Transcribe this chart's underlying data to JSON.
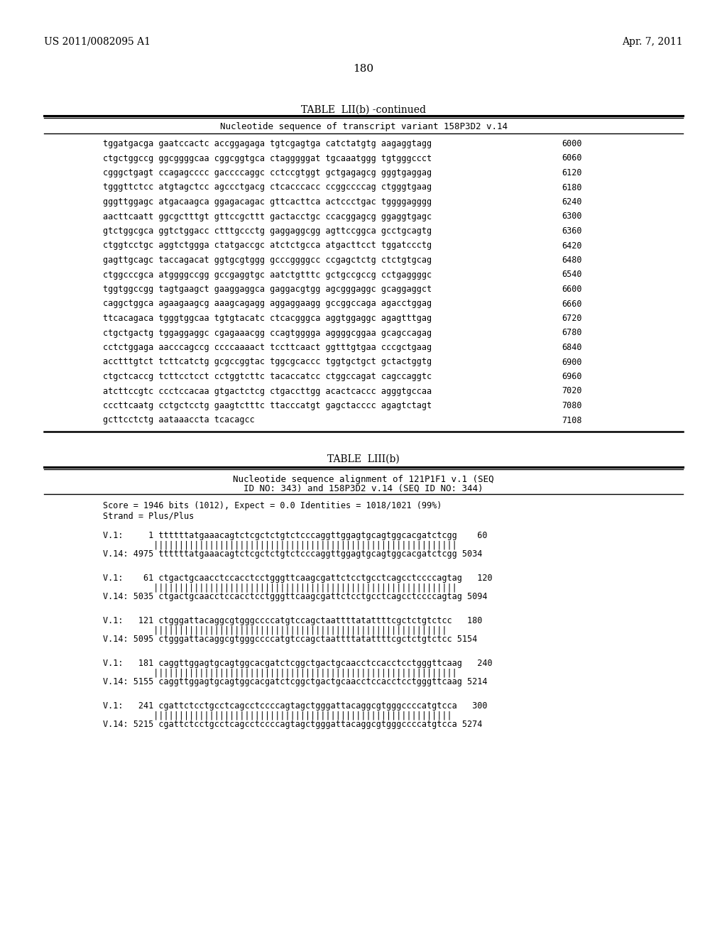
{
  "header_left": "US 2011/0082095 A1",
  "header_right": "Apr. 7, 2011",
  "page_number": "180",
  "table1_title": "TABLE  LII(b) -continued",
  "table1_header": "Nucleotide sequence of transcript variant 158P3D2 v.14",
  "table1_rows": [
    [
      "tggatgacga gaatccactc accggagaga tgtcgagtga catctatgtg aagaggtagg",
      "6000"
    ],
    [
      "ctgctggccg ggcggggcaa cggcggtgca ctagggggat tgcaaatggg tgtgggccct",
      "6060"
    ],
    [
      "cgggctgagt ccagagcccc gaccccaggc cctccgtggt gctgagagcg gggtgaggag",
      "6120"
    ],
    [
      "tgggttctcc atgtagctcc agccctgacg ctcacccacc ccggccccag ctgggtgaag",
      "6180"
    ],
    [
      "gggttggagc atgacaagca ggagacagac gttcacttca actccctgac tggggagggg",
      "6240"
    ],
    [
      "aacttcaatt ggcgctttgt gttccgcttt gactacctgc ccacggagcg ggaggtgagc",
      "6300"
    ],
    [
      "gtctggcgca ggtctggacc ctttgccctg gaggaggcgg agttccggca gcctgcagtg",
      "6360"
    ],
    [
      "ctggtcctgc aggtctggga ctatgaccgc atctctgcca atgacttcct tggatccctg",
      "6420"
    ],
    [
      "gagttgcagc taccagacat ggtgcgtggg gcccggggcc ccgagctctg ctctgtgcag",
      "6480"
    ],
    [
      "ctggcccgca atggggccgg gccgaggtgc aatctgtttc gctgccgccg cctgaggggc",
      "6540"
    ],
    [
      "tggtggccgg tagtgaagct gaaggaggca gaggacgtgg agcgggaggc gcaggaggct",
      "6600"
    ],
    [
      "caggctggca agaagaagcg aaagcagagg aggaggaagg gccggccaga agacctggag",
      "6660"
    ],
    [
      "ttcacagaca tgggtggcaa tgtgtacatc ctcacgggca aggtggaggc agagtttgag",
      "6720"
    ],
    [
      "ctgctgactg tggaggaggc cgagaaacgg ccagtgggga aggggcggaa gcagccagag",
      "6780"
    ],
    [
      "cctctggaga aacccagccg ccccaaaact tccttcaact ggtttgtgaa cccgctgaag",
      "6840"
    ],
    [
      "acctttgtct tcttcatctg gcgccggtac tggcgcaccc tggtgctgct gctactggtg",
      "6900"
    ],
    [
      "ctgctcaccg tcttcctcct cctggtcttc tacaccatcc ctggccagat cagccaggtc",
      "6960"
    ],
    [
      "atcttccgtc ccctccacaa gtgactctcg ctgaccttgg acactcaccc agggtgccaa",
      "7020"
    ],
    [
      "cccttcaatg cctgctcctg gaagtctttc ttacccatgt gagctacccc agagtctagt",
      "7080"
    ],
    [
      "gcttcctctg aataaaccta tcacagcc",
      "7108"
    ]
  ],
  "table2_title": "TABLE  LIII(b)",
  "table2_header_line1": "Nucleotide sequence alignment of 121P1F1 v.1 (SEQ",
  "table2_header_line2": "ID NO: 343) and 158P3D2 v.14 (SEQ ID NO: 344)",
  "table2_score_line1": "Score = 1946 bits (1012), Expect = 0.0 Identities = 1018/1021 (99%)",
  "table2_score_line2": "Strand = Plus/Plus",
  "table2_blocks": [
    {
      "v1_line": "V.1:     1 ttttttatgaaacagtctcgctctgtctcccaggttggagtgcagtggcacgatctcgg    60",
      "bars": "          ||||||||||||||||||||||||||||||||||||||||||||||||||||||||||||",
      "v14_line": "V.14: 4975 ttttttatgaaacagtctcgctctgtctcccaggttggagtgcagtggcacgatctcgg 5034"
    },
    {
      "v1_line": "V.1:    61 ctgactgcaacctccacctcctgggttcaagcgattctcctgcctcagcctccccagtag   120",
      "bars": "          ||||||||||||||||||||||||||||||||||||||||||||||||||||||||||||",
      "v14_line": "V.14: 5035 ctgactgcaacctccacctcctgggttcaagcgattctcctgcctcagcctccccagtag 5094"
    },
    {
      "v1_line": "V.1:   121 ctgggattacaggcgtgggccccatgtccagctaattttatattttcgctctgtctcc   180",
      "bars": "          ||||||||||||||||||||||||||||||||||||||||||||||||||||||||||",
      "v14_line": "V.14: 5095 ctgggattacaggcgtgggccccatgtccagctaattttatattttcgctctgtctcc 5154"
    },
    {
      "v1_line": "V.1:   181 caggttggagtgcagtggcacgatctcggctgactgcaacctccacctcctgggttcaag   240",
      "bars": "          ||||||||||||||||||||||||||||||||||||||||||||||||||||||||||||",
      "v14_line": "V.14: 5155 caggttggagtgcagtggcacgatctcggctgactgcaacctccacctcctgggttcaag 5214"
    },
    {
      "v1_line": "V.1:   241 cgattctcctgcctcagcctccccagtagctgggattacaggcgtgggccccatgtcca   300",
      "bars": "          |||||||||||||||||||||||||||||||||||||||||||||||||||||||||||",
      "v14_line": "V.14: 5215 cgattctcctgcctcagcctccccagtagctgggattacaggcgtgggccccatgtcca 5274"
    }
  ],
  "bg_color": "#ffffff",
  "text_color": "#000000"
}
